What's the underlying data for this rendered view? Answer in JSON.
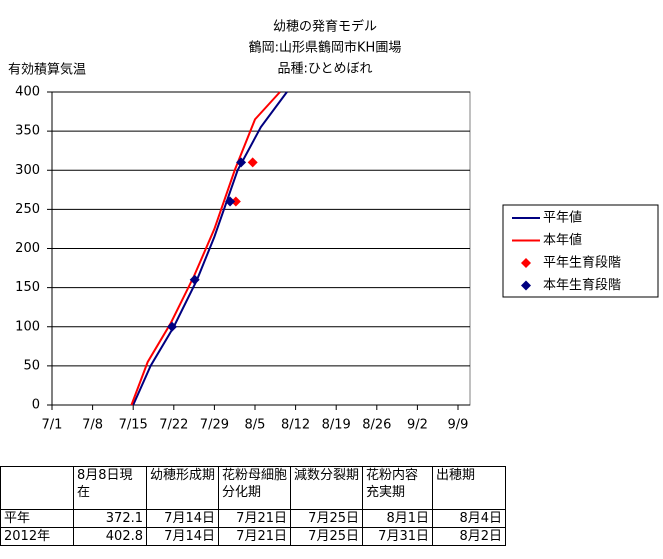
{
  "chart_data": {
    "type": "line",
    "title": [
      "幼穂の発育モデル",
      "鶴岡:山形県鶴岡市KH圃場",
      "品種:ひとめぼれ"
    ],
    "ylabel": "有効積算気温",
    "xlim": [
      0,
      70
    ],
    "xticks": [
      {
        "value": 0,
        "label": "7/1"
      },
      {
        "value": 7,
        "label": "7/8"
      },
      {
        "value": 14,
        "label": "7/15"
      },
      {
        "value": 21,
        "label": "7/22"
      },
      {
        "value": 28,
        "label": "7/29"
      },
      {
        "value": 35,
        "label": "8/5"
      },
      {
        "value": 42,
        "label": "8/12"
      },
      {
        "value": 49,
        "label": "8/19"
      },
      {
        "value": 56,
        "label": "8/26"
      },
      {
        "value": 63,
        "label": "9/2"
      },
      {
        "value": 70,
        "label": "9/9"
      }
    ],
    "ylim": [
      0,
      400
    ],
    "yticks": [
      0,
      50,
      100,
      150,
      200,
      250,
      300,
      350,
      400
    ],
    "grid": true,
    "series": [
      {
        "name": "平年値",
        "color": "#000080",
        "type": "line",
        "x": [
          14,
          17,
          21,
          25,
          28,
          32,
          36,
          40.5
        ],
        "values": [
          0,
          50,
          100,
          160,
          215,
          300,
          355,
          400
        ]
      },
      {
        "name": "本年値",
        "color": "#ff0000",
        "type": "line",
        "x": [
          13.7,
          16.5,
          20.5,
          24.5,
          28,
          31.5,
          35,
          39.3
        ],
        "values": [
          0,
          55,
          105,
          165,
          225,
          300,
          365,
          400
        ]
      },
      {
        "name": "平年生育段階",
        "color": "#ff0000",
        "type": "scatter",
        "x": [
          31.7,
          34.6
        ],
        "values": [
          260,
          310
        ]
      },
      {
        "name": "本年生育段階",
        "color": "#000080",
        "type": "scatter",
        "x": [
          20.7,
          24.6,
          30.7,
          32.6
        ],
        "values": [
          100,
          160,
          260,
          310
        ]
      }
    ]
  },
  "table": {
    "header": [
      "8月8日現在",
      "幼穂形成期",
      "花粉母細胞分化期",
      "減数分裂期",
      "花粉内容充実期",
      "出穂期"
    ],
    "rows": [
      [
        "平年",
        "372.1",
        "7月14日",
        "7月21日",
        "7月25日",
        "8月1日",
        "8月4日"
      ],
      [
        "2012年",
        "402.8",
        "7月14日",
        "7月21日",
        "7月25日",
        "7月31日",
        "8月2日"
      ]
    ]
  }
}
